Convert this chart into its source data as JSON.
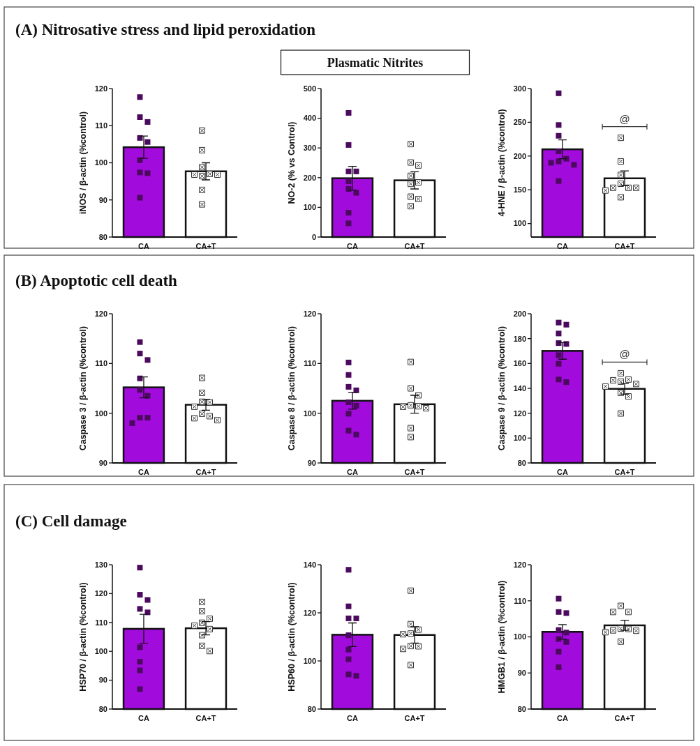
{
  "chart_data": [
    {
      "type": "bar",
      "title": "(A) Nitrosative stress and lipid peroxidation",
      "ylabel": "iNOS / β-actin (%control)",
      "categories": [
        "CA",
        "CA+T"
      ],
      "ylim": [
        80,
        120
      ],
      "yticks": [
        80,
        90,
        100,
        110,
        120
      ],
      "series": [
        {
          "colors": [
            "#a10bdc",
            "#ffffff"
          ],
          "values": [
            104.2,
            97.7
          ],
          "errors": [
            3.0,
            2.3
          ]
        },
        {
          "type": "scatter",
          "marker": "square",
          "color": "#4b0a5e",
          "x": [
            "CA",
            "CA",
            "CA",
            "CA",
            "CA",
            "CA",
            "CA",
            "CA",
            "CA"
          ],
          "values": [
            117.7,
            112.3,
            111.0,
            106.7,
            105.6,
            100.7,
            97.2,
            97.4,
            90.6
          ]
        },
        {
          "type": "scatter",
          "marker": "cross",
          "color": "#333333",
          "x": [
            "CA+T",
            "CA+T",
            "CA+T",
            "CA+T",
            "CA+T",
            "CA+T",
            "CA+T",
            "CA+T",
            "CA+T"
          ],
          "values": [
            108.7,
            103.4,
            98.8,
            96.8,
            96.4,
            97.0,
            96.8,
            92.7,
            88.8
          ]
        }
      ]
    },
    {
      "type": "bar",
      "title": "Plasmatic Nitrites",
      "ylabel": "NO-2 (% vs Control)",
      "categories": [
        "CA",
        "CA+T"
      ],
      "ylim": [
        0,
        500
      ],
      "yticks": [
        0,
        100,
        200,
        300,
        400,
        500
      ],
      "series": [
        {
          "colors": [
            "#a10bdc",
            "#ffffff"
          ],
          "values": [
            198,
            191
          ],
          "errors": [
            40,
            29
          ]
        },
        {
          "type": "scatter",
          "marker": "square",
          "color": "#4b0a5e",
          "x": [
            "CA",
            "CA",
            "CA",
            "CA",
            "CA",
            "CA",
            "CA",
            "CA",
            "CA"
          ],
          "values": [
            418,
            310,
            221,
            221,
            188,
            162,
            149,
            82,
            46
          ]
        },
        {
          "type": "scatter",
          "marker": "cross",
          "color": "#333333",
          "x": [
            "CA+T",
            "CA+T",
            "CA+T",
            "CA+T",
            "CA+T",
            "CA+T",
            "CA+T",
            "CA+T",
            "CA+T"
          ],
          "values": [
            313,
            251,
            241,
            206,
            184,
            179,
            136,
            128,
            104
          ]
        }
      ]
    },
    {
      "type": "bar",
      "ylabel": "4-HNE / β-actin (%control)",
      "categories": [
        "CA",
        "CA+T"
      ],
      "ylim": [
        80,
        300
      ],
      "yticks": [
        100,
        150,
        200,
        250,
        300
      ],
      "annotations": [
        "@"
      ],
      "series": [
        {
          "colors": [
            "#a10bdc",
            "#ffffff"
          ],
          "values": [
            210,
            167
          ],
          "errors": [
            14,
            11
          ]
        },
        {
          "type": "scatter",
          "marker": "square",
          "color": "#4b0a5e",
          "x": [
            "CA",
            "CA",
            "CA",
            "CA",
            "CA",
            "CA",
            "CA",
            "CA",
            "CA"
          ],
          "values": [
            293,
            246,
            230,
            207,
            196,
            190,
            192,
            187,
            163
          ]
        },
        {
          "type": "scatter",
          "marker": "cross",
          "color": "#333333",
          "x": [
            "CA+T",
            "CA+T",
            "CA+T",
            "CA+T",
            "CA+T",
            "CA+T",
            "CA+T",
            "CA+T",
            "CA+T"
          ],
          "values": [
            227,
            192,
            172,
            159,
            153,
            153,
            153,
            149,
            139
          ]
        }
      ]
    },
    {
      "type": "bar",
      "title": "(B) Apoptotic cell death",
      "ylabel": "Caspase 3 / β-actin (%control)",
      "categories": [
        "CA",
        "CA+T"
      ],
      "ylim": [
        90,
        120
      ],
      "yticks": [
        90,
        100,
        110,
        120
      ],
      "series": [
        {
          "colors": [
            "#a10bdc",
            "#ffffff"
          ],
          "values": [
            105.2,
            101.7
          ],
          "errors": [
            2.1,
            1.1
          ]
        },
        {
          "type": "scatter",
          "marker": "square",
          "color": "#4b0a5e",
          "x": [
            "CA",
            "CA",
            "CA",
            "CA",
            "CA",
            "CA",
            "CA",
            "CA",
            "CA"
          ],
          "values": [
            114.3,
            112.0,
            110.7,
            107.0,
            104.7,
            103.5,
            99.1,
            99.1,
            98.0
          ]
        },
        {
          "type": "scatter",
          "marker": "cross",
          "color": "#333333",
          "x": [
            "CA+T",
            "CA+T",
            "CA+T",
            "CA+T",
            "CA+T",
            "CA+T",
            "CA+T",
            "CA+T",
            "CA+T"
          ],
          "values": [
            107.1,
            104.1,
            102.3,
            102.2,
            101.3,
            99.9,
            99.4,
            98.6,
            99.0
          ]
        }
      ]
    },
    {
      "type": "bar",
      "ylabel": "Caspase 8 / β-actin (%control)",
      "categories": [
        "CA",
        "CA+T"
      ],
      "ylim": [
        90,
        120
      ],
      "yticks": [
        90,
        100,
        110,
        120
      ],
      "series": [
        {
          "colors": [
            "#a10bdc",
            "#ffffff"
          ],
          "values": [
            102.5,
            101.8
          ],
          "errors": [
            1.7,
            1.8
          ]
        },
        {
          "type": "scatter",
          "marker": "square",
          "color": "#4b0a5e",
          "x": [
            "CA",
            "CA",
            "CA",
            "CA",
            "CA",
            "CA",
            "CA",
            "CA",
            "CA"
          ],
          "values": [
            110.2,
            107.7,
            104.6,
            105.3,
            102.2,
            101.5,
            99.9,
            96.5,
            95.7
          ]
        },
        {
          "type": "scatter",
          "marker": "cross",
          "color": "#333333",
          "x": [
            "CA+T",
            "CA+T",
            "CA+T",
            "CA+T",
            "CA+T",
            "CA+T",
            "CA+T",
            "CA+T",
            "CA+T"
          ],
          "values": [
            110.3,
            105.0,
            103.6,
            101.4,
            101.3,
            101.6,
            101.0,
            97.0,
            95.2
          ]
        }
      ]
    },
    {
      "type": "bar",
      "ylabel": "Caspase 9 / β-actin (%control)",
      "categories": [
        "CA",
        "CA+T"
      ],
      "ylim": [
        80,
        200
      ],
      "yticks": [
        80,
        100,
        120,
        140,
        160,
        180,
        200
      ],
      "annotations": [
        "@"
      ],
      "series": [
        {
          "colors": [
            "#a10bdc",
            "#ffffff"
          ],
          "values": [
            170.1,
            139.6
          ],
          "errors": [
            6.7,
            4.3
          ]
        },
        {
          "type": "scatter",
          "marker": "square",
          "color": "#4b0a5e",
          "x": [
            "CA",
            "CA",
            "CA",
            "CA",
            "CA",
            "CA",
            "CA",
            "CA",
            "CA"
          ],
          "values": [
            192.9,
            191.2,
            184.1,
            175.7,
            176.4,
            166.7,
            159.8,
            145.0,
            147.1
          ]
        },
        {
          "type": "scatter",
          "marker": "cross",
          "color": "#333333",
          "x": [
            "CA+T",
            "CA+T",
            "CA+T",
            "CA+T",
            "CA+T",
            "CA+T",
            "CA+T",
            "CA+T",
            "CA+T"
          ],
          "values": [
            152.1,
            147.1,
            146.5,
            145.4,
            143.5,
            141.5,
            136.4,
            133.5,
            119.8
          ]
        }
      ]
    },
    {
      "type": "bar",
      "title": "(C) Cell damage",
      "ylabel": "HSP70 / β-actin (%control)",
      "categories": [
        "CA",
        "CA+T"
      ],
      "ylim": [
        80,
        130
      ],
      "yticks": [
        80,
        90,
        100,
        110,
        120,
        130
      ],
      "series": [
        {
          "colors": [
            "#a10bdc",
            "#ffffff"
          ],
          "values": [
            107.8,
            108.0
          ],
          "errors": [
            5.0,
            2.3
          ]
        },
        {
          "type": "scatter",
          "marker": "square",
          "color": "#4b0a5e",
          "x": [
            "CA",
            "CA",
            "CA",
            "CA",
            "CA",
            "CA",
            "CA",
            "CA",
            "CA"
          ],
          "values": [
            129.0,
            119.6,
            117.8,
            114.7,
            113.5,
            101.4,
            96.4,
            93.4,
            86.9
          ]
        },
        {
          "type": "scatter",
          "marker": "cross",
          "color": "#333333",
          "x": [
            "CA+T",
            "CA+T",
            "CA+T",
            "CA+T",
            "CA+T",
            "CA+T",
            "CA+T",
            "CA+T",
            "CA+T"
          ],
          "values": [
            117.1,
            113.9,
            111.3,
            109.9,
            108.9,
            107.7,
            105.6,
            101.9,
            100.1
          ]
        }
      ]
    },
    {
      "type": "bar",
      "ylabel": "HSP60 / β-actin (%control)",
      "categories": [
        "CA",
        "CA+T"
      ],
      "ylim": [
        80,
        140
      ],
      "yticks": [
        80,
        100,
        120,
        140
      ],
      "series": [
        {
          "colors": [
            "#a10bdc",
            "#ffffff"
          ],
          "values": [
            110.9,
            110.8
          ],
          "errors": [
            4.9,
            3.4
          ]
        },
        {
          "type": "scatter",
          "marker": "square",
          "color": "#4b0a5e",
          "x": [
            "CA",
            "CA",
            "CA",
            "CA",
            "CA",
            "CA",
            "CA",
            "CA",
            "CA"
          ],
          "values": [
            137.9,
            122.7,
            117.7,
            117.7,
            110.7,
            104.7,
            100.7,
            93.8,
            94.4
          ]
        },
        {
          "type": "scatter",
          "marker": "cross",
          "color": "#333333",
          "x": [
            "CA+T",
            "CA+T",
            "CA+T",
            "CA+T",
            "CA+T",
            "CA+T",
            "CA+T",
            "CA+T",
            "CA+T"
          ],
          "values": [
            129.2,
            115.3,
            113.0,
            111.1,
            111.4,
            106.2,
            105.0,
            106.1,
            98.3
          ]
        }
      ]
    },
    {
      "type": "bar",
      "ylabel": "HMGB1 / β-actin (%control)",
      "categories": [
        "CA",
        "CA+T"
      ],
      "ylim": [
        80,
        120
      ],
      "yticks": [
        80,
        90,
        100,
        110,
        120
      ],
      "series": [
        {
          "colors": [
            "#a10bdc",
            "#ffffff"
          ],
          "values": [
            101.4,
            103.2
          ],
          "errors": [
            2.0,
            1.4
          ]
        },
        {
          "type": "scatter",
          "marker": "square",
          "color": "#4b0a5e",
          "x": [
            "CA",
            "CA",
            "CA",
            "CA",
            "CA",
            "CA",
            "CA",
            "CA",
            "CA"
          ],
          "values": [
            110.6,
            106.9,
            106.6,
            101.9,
            101.2,
            99.4,
            98.6,
            95.9,
            91.6
          ]
        },
        {
          "type": "scatter",
          "marker": "cross",
          "color": "#333333",
          "x": [
            "CA+T",
            "CA+T",
            "CA+T",
            "CA+T",
            "CA+T",
            "CA+T",
            "CA+T",
            "CA+T",
            "CA+T"
          ],
          "values": [
            108.6,
            106.9,
            106.9,
            102.3,
            102.2,
            101.7,
            101.3,
            101.8,
            98.7
          ]
        }
      ]
    }
  ]
}
